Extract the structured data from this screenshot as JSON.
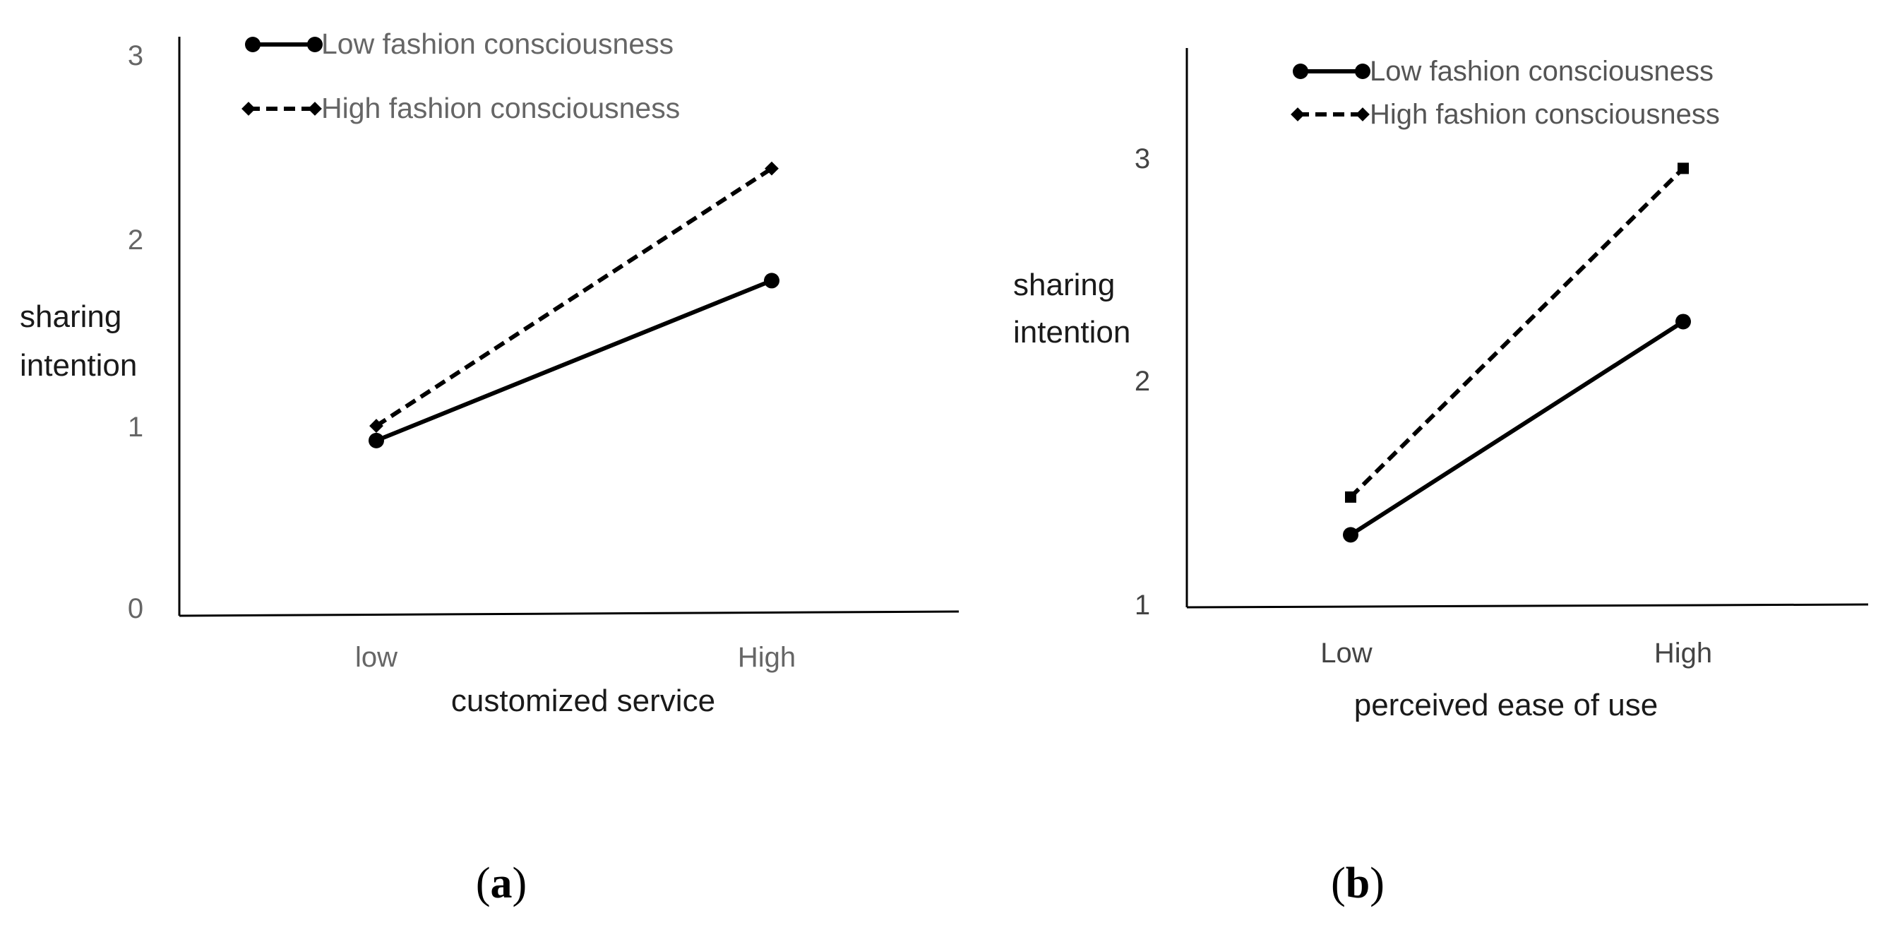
{
  "colors": {
    "series": "#000000",
    "axis": "#000000",
    "tick_text": "#666666",
    "background": "#ffffff"
  },
  "chart_data": [
    {
      "type": "line",
      "panel_label": {
        "open": "(",
        "letter": "a",
        "close": ")"
      },
      "xlabel": "customized service",
      "ylabel_lines": [
        "sharing",
        "intention"
      ],
      "categories": [
        "low",
        "High"
      ],
      "yticks": [
        "0",
        "1",
        "2",
        "3"
      ],
      "ylim": [
        0,
        3
      ],
      "grid": false,
      "legend_position": "top",
      "series": [
        {
          "name": "Low fashion consciousness",
          "line_style": "solid",
          "marker": "circle",
          "values": [
            0.93,
            1.8
          ]
        },
        {
          "name": "High fashion consciousness",
          "line_style": "dashed",
          "marker": "diamond",
          "values": [
            1.01,
            2.41
          ]
        }
      ]
    },
    {
      "type": "line",
      "panel_label": {
        "open": "(",
        "letter": "b",
        "close": ")"
      },
      "xlabel": "perceived ease of use",
      "ylabel_lines": [
        "sharing",
        "intention"
      ],
      "categories": [
        "Low",
        "High"
      ],
      "yticks": [
        "1",
        "2",
        "3"
      ],
      "ylim": [
        1,
        3
      ],
      "grid": false,
      "legend_position": "top",
      "series": [
        {
          "name": "Low fashion consciousness",
          "line_style": "solid",
          "marker": "circle",
          "values": [
            1.32,
            2.28
          ]
        },
        {
          "name": "High fashion consciousness",
          "line_style": "dashed",
          "marker": "square",
          "values": [
            1.49,
            2.97
          ]
        }
      ]
    }
  ]
}
